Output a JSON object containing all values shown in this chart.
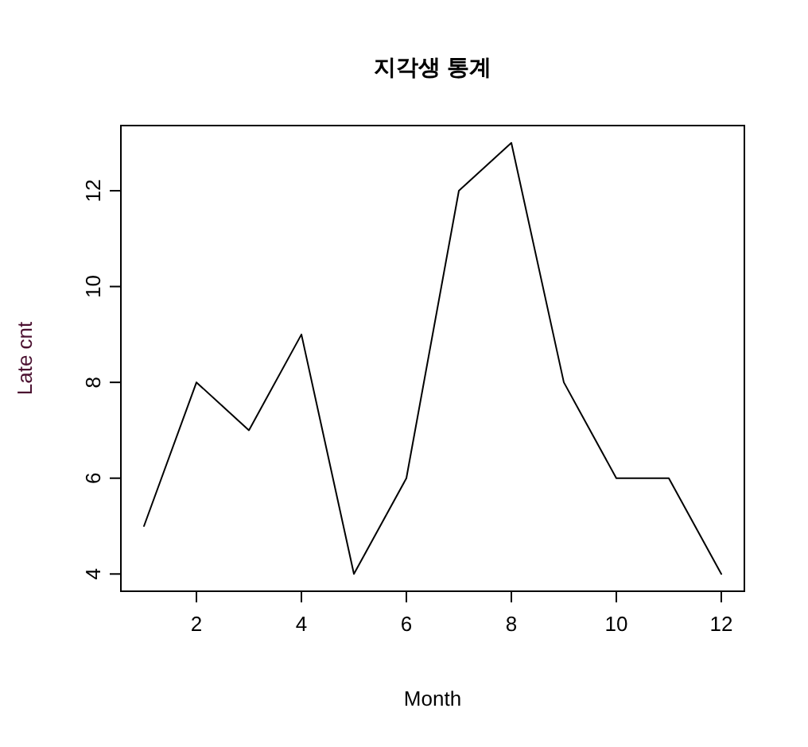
{
  "chart_data": {
    "type": "line",
    "title": "지각생 통계",
    "xlabel": "Month",
    "ylabel": "Late cnt",
    "x": [
      1,
      2,
      3,
      4,
      5,
      6,
      7,
      8,
      9,
      10,
      11,
      12
    ],
    "series": [
      {
        "color": "#000000",
        "values": [
          5,
          8,
          7,
          9,
          4,
          6,
          12,
          13,
          8,
          6,
          6,
          4
        ]
      }
    ],
    "xlim": [
      0.56,
      12.44
    ],
    "ylim": [
      3.64,
      13.36
    ],
    "xticks": [
      2,
      4,
      6,
      8,
      10,
      12
    ],
    "yticks": [
      4,
      6,
      8,
      10,
      12
    ],
    "marker": "none",
    "line_style": "solid",
    "grid": false
  }
}
